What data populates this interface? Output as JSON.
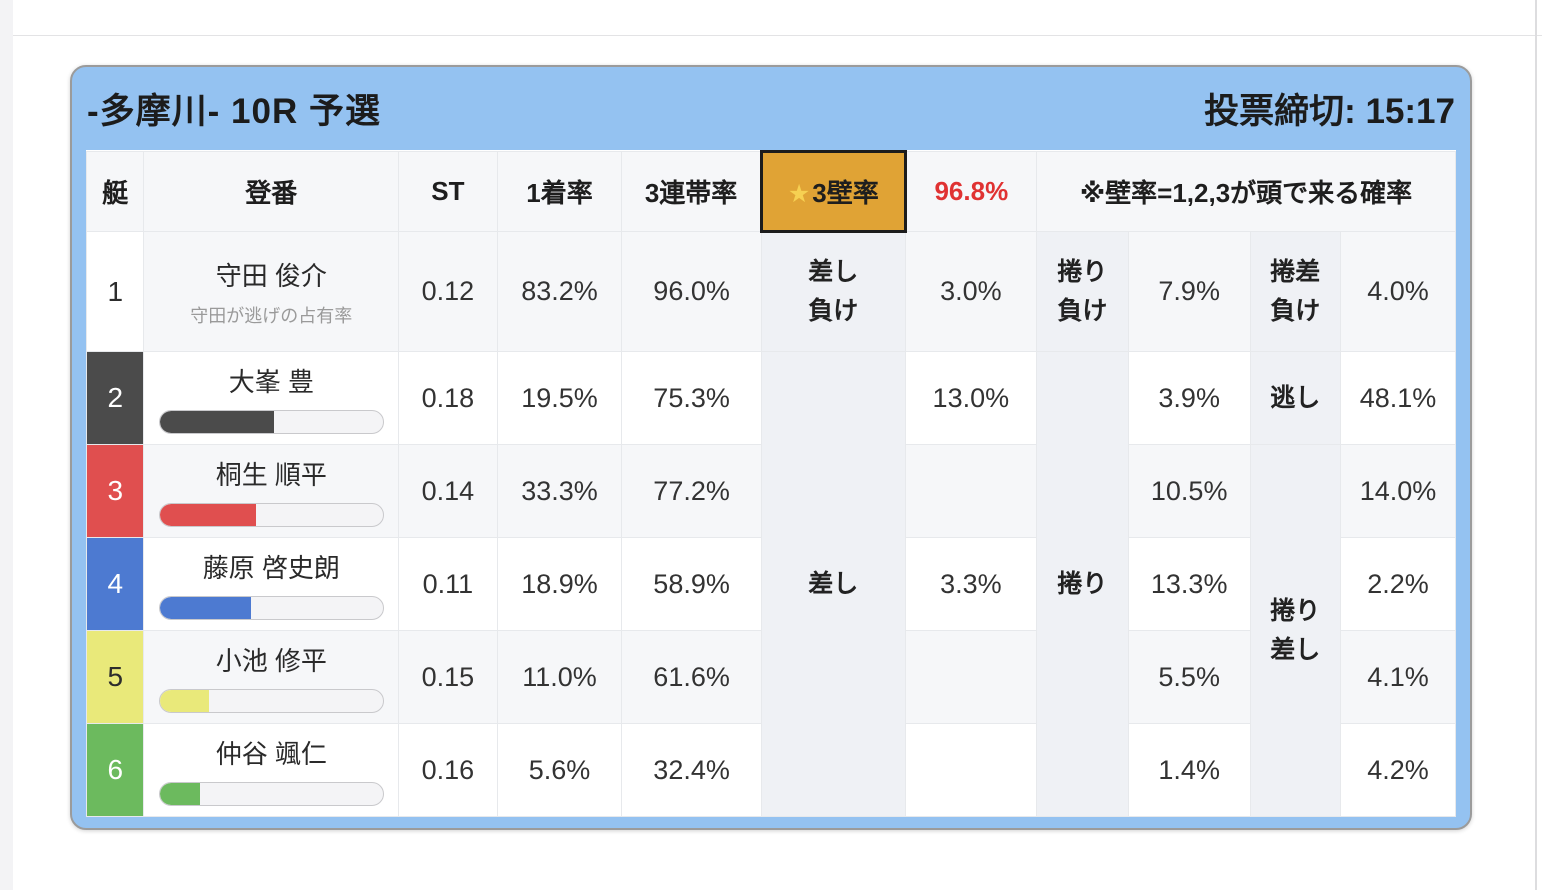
{
  "page": {
    "title": "-多摩川- 10R 予選",
    "deadline_label": "投票締切: 15:17"
  },
  "colors": {
    "card_blue": "#94c2f1",
    "highlight_orange": "#e0a335",
    "accent_red": "#e03232",
    "star_yellow": "#f6d052",
    "boats": [
      "#ffffff",
      "#4b4b4b",
      "#e04f4f",
      "#4d7ad1",
      "#e9e97a",
      "#6cba5e"
    ]
  },
  "table": {
    "headers": {
      "boat": "艇",
      "entry": "登番",
      "st": "ST",
      "first_rate": "1着率",
      "top3_rate": "3連帯率",
      "wall_star": "★",
      "wall_label": "3壁率",
      "wall_value": "96.8%",
      "note": "※壁率=1,2,3が頭で来る確率"
    },
    "kimarite_labels": {
      "sashi_make_line1": "差し",
      "sashi_make_line2": "負け",
      "makuri_make_line1": "捲り",
      "makuri_make_line2": "負け",
      "makurizashi_make_line1": "捲差",
      "makurizashi_make_line2": "負け",
      "sashi": "差し",
      "makuri": "捲り",
      "nigashi": "逃し",
      "makurizashi_line1": "捲り",
      "makurizashi_line2": "差し"
    },
    "rows": [
      {
        "boat": "1",
        "name": "守田 俊介",
        "subtitle": "守田が逃げの占有率",
        "st": "0.12",
        "first_rate": "83.2%",
        "top3_rate": "96.0%",
        "sashi_value": "3.0%",
        "makuri_value": "7.9%",
        "third_value": "4.0%"
      },
      {
        "boat": "2",
        "name": "大峯 豊",
        "bar_percent": 51,
        "st": "0.18",
        "first_rate": "19.5%",
        "top3_rate": "75.3%",
        "sashi_value": "13.0%",
        "makuri_value": "3.9%",
        "third_value": "48.1%"
      },
      {
        "boat": "3",
        "name": "桐生 順平",
        "bar_percent": 43,
        "st": "0.14",
        "first_rate": "33.3%",
        "top3_rate": "77.2%",
        "sashi_value": "",
        "makuri_value": "10.5%",
        "third_value": "14.0%"
      },
      {
        "boat": "4",
        "name": "藤原 啓史朗",
        "bar_percent": 41,
        "st": "0.11",
        "first_rate": "18.9%",
        "top3_rate": "58.9%",
        "sashi_value": "3.3%",
        "makuri_value": "13.3%",
        "third_value": "2.2%"
      },
      {
        "boat": "5",
        "name": "小池 修平",
        "bar_percent": 22,
        "st": "0.15",
        "first_rate": "11.0%",
        "top3_rate": "61.6%",
        "sashi_value": "",
        "makuri_value": "5.5%",
        "third_value": "4.1%"
      },
      {
        "boat": "6",
        "name": "仲谷 颯仁",
        "bar_percent": 18,
        "st": "0.16",
        "first_rate": "5.6%",
        "top3_rate": "32.4%",
        "sashi_value": "",
        "makuri_value": "1.4%",
        "third_value": "4.2%"
      }
    ]
  }
}
